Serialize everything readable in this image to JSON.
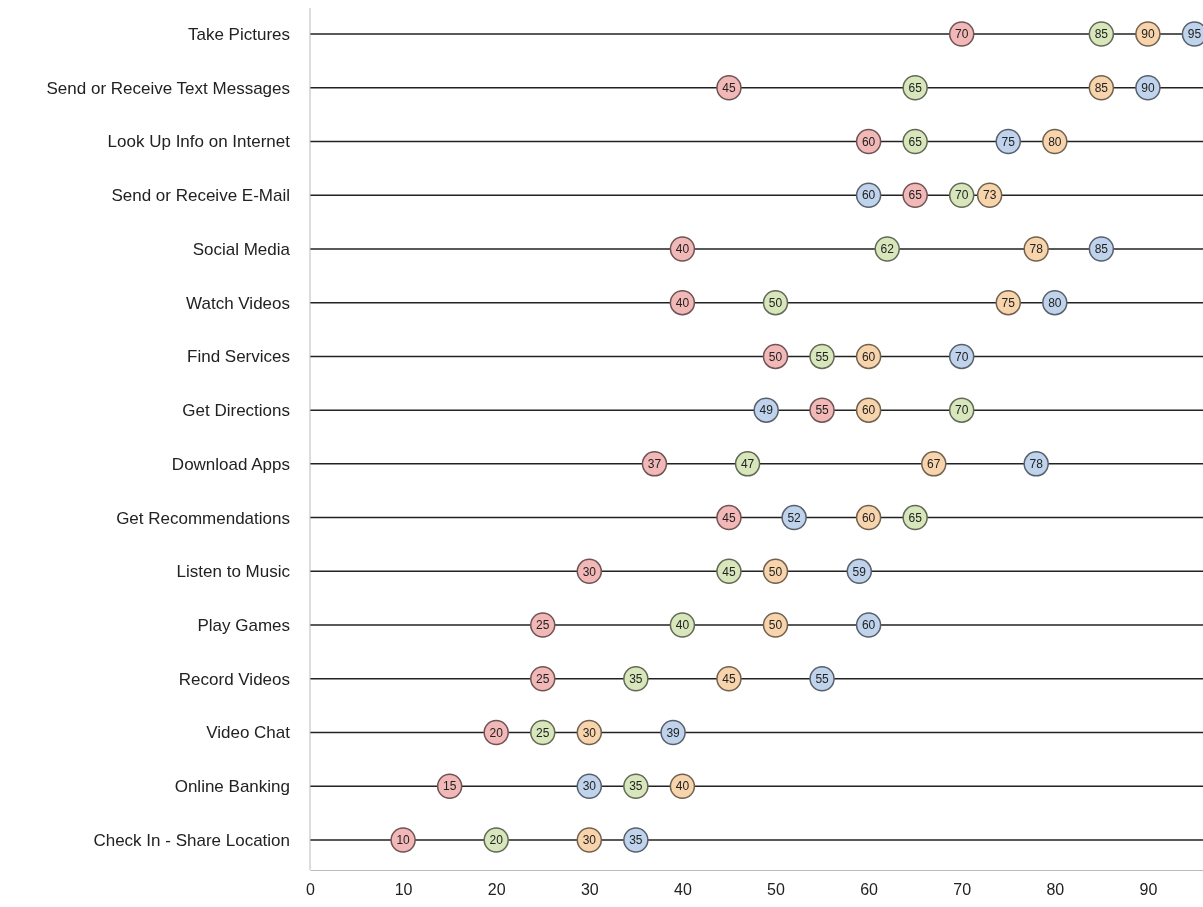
{
  "chart_data": {
    "type": "scatter",
    "orientation": "horizontal",
    "categories": [
      "Take Pictures",
      "Send or Receive Text Messages",
      "Look Up Info on Internet",
      "Send or Receive E-Mail",
      "Social Media",
      "Watch Videos",
      "Find Services",
      "Get Directions ",
      "Download Apps",
      "Get Recommendations",
      "Listen to Music",
      "Play Games",
      "Record Videos",
      "Video Chat",
      "Online Banking",
      "Check In - Share Location"
    ],
    "series": [
      {
        "color": "#f2b8b8",
        "values": [
          70,
          45,
          60,
          65,
          40,
          40,
          50,
          55,
          37,
          45,
          30,
          25,
          25,
          20,
          15,
          10
        ]
      },
      {
        "color": "#d8e6bc",
        "values": [
          85,
          65,
          65,
          70,
          62,
          50,
          55,
          70,
          47,
          65,
          45,
          40,
          35,
          25,
          35,
          20
        ]
      },
      {
        "color": "#f8d4ad",
        "values": [
          90,
          85,
          80,
          73,
          78,
          75,
          60,
          60,
          67,
          60,
          50,
          50,
          45,
          30,
          40,
          30
        ]
      },
      {
        "color": "#c0d3ec",
        "values": [
          95,
          90,
          75,
          60,
          85,
          80,
          70,
          49,
          78,
          52,
          59,
          60,
          55,
          39,
          30,
          35
        ]
      }
    ],
    "xlim": [
      0,
      100
    ],
    "xticks": [
      0,
      10,
      20,
      30,
      40,
      50,
      60,
      70,
      80,
      90
    ],
    "grid": "y",
    "marker": "circle",
    "data_labels": true
  }
}
